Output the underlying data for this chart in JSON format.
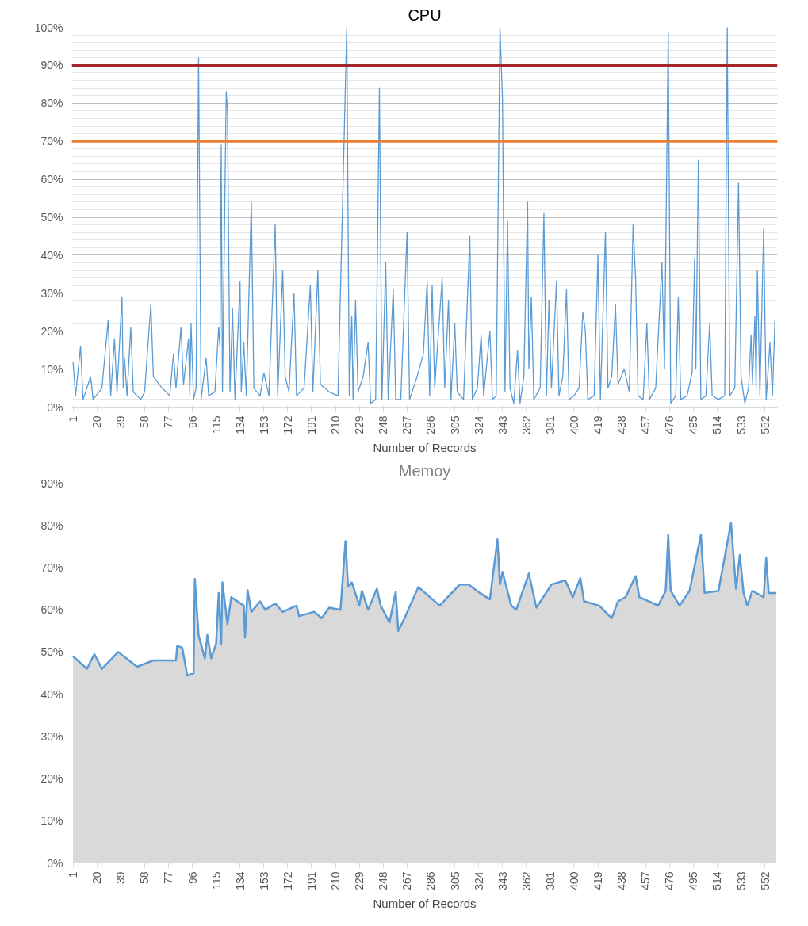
{
  "chart_data": [
    {
      "type": "line",
      "title": "CPU",
      "xlabel": "Number of Records",
      "xlim": [
        0,
        562
      ],
      "ylim": [
        0,
        100
      ],
      "xticks": [
        1,
        20,
        39,
        58,
        77,
        96,
        115,
        134,
        153,
        172,
        191,
        210,
        229,
        248,
        267,
        286,
        305,
        324,
        343,
        362,
        381,
        400,
        419,
        438,
        457,
        476,
        495,
        514,
        533,
        552
      ],
      "yticks": [
        {
          "value": 0,
          "label": "0%"
        },
        {
          "value": 10,
          "label": "10%"
        },
        {
          "value": 20,
          "label": "20%"
        },
        {
          "value": 30,
          "label": "30%"
        },
        {
          "value": 40,
          "label": "40%"
        },
        {
          "value": 50,
          "label": "50%"
        },
        {
          "value": 60,
          "label": "60%"
        },
        {
          "value": 70,
          "label": "70%"
        },
        {
          "value": 80,
          "label": "80%"
        },
        {
          "value": 90,
          "label": "90%"
        },
        {
          "value": 100,
          "label": "100%"
        }
      ],
      "grid": "y",
      "ref_lines": [
        {
          "axis": "y",
          "value": 90,
          "color": "#a3262a"
        },
        {
          "axis": "y",
          "value": 70,
          "color": "#ed7d31"
        }
      ],
      "series": [
        {
          "color": "#5b9bd5",
          "x": [
            1,
            3,
            7,
            9,
            15,
            17,
            24,
            29,
            31,
            34,
            36,
            40,
            41,
            42,
            44,
            47,
            49,
            55,
            58,
            63,
            65,
            72,
            78,
            81,
            83,
            87,
            89,
            93,
            94,
            95,
            97,
            99,
            101,
            103,
            107,
            109,
            114,
            117,
            118,
            119,
            120,
            123,
            124,
            126,
            128,
            130,
            134,
            135,
            137,
            139,
            143,
            145,
            150,
            153,
            157,
            162,
            164,
            168,
            170,
            173,
            177,
            179,
            185,
            190,
            192,
            196,
            198,
            205,
            212,
            219,
            221,
            223,
            224,
            226,
            228,
            232,
            236,
            238,
            242,
            245,
            247,
            250,
            252,
            256,
            258,
            262,
            267,
            269,
            275,
            280,
            283,
            285,
            287,
            289,
            295,
            297,
            300,
            302,
            305,
            307,
            312,
            317,
            319,
            323,
            326,
            328,
            333,
            335,
            338,
            341,
            343,
            345,
            347,
            349,
            352,
            355,
            357,
            360,
            363,
            364,
            366,
            368,
            373,
            376,
            378,
            380,
            382,
            386,
            388,
            391,
            394,
            396,
            400,
            404,
            407,
            409,
            411,
            416,
            419,
            421,
            425,
            427,
            430,
            433,
            435,
            440,
            444,
            447,
            449,
            451,
            455,
            458,
            460,
            465,
            470,
            472,
            475,
            477,
            481,
            483,
            485,
            490,
            494,
            496,
            497,
            499,
            501,
            505,
            508,
            510,
            515,
            520,
            522,
            524,
            528,
            531,
            533,
            536,
            539,
            541,
            542,
            544,
            545,
            546,
            548,
            551,
            553,
            556,
            558,
            560
          ],
          "values": [
            12,
            3,
            16,
            2,
            8,
            2,
            5,
            23,
            3,
            18,
            4,
            29,
            5,
            13,
            3,
            21,
            4,
            2,
            4,
            27,
            8,
            5,
            3,
            14,
            5,
            21,
            6,
            18,
            3,
            22,
            2,
            5,
            92,
            2,
            13,
            3,
            4,
            21,
            16,
            69,
            4,
            83,
            78,
            4,
            26,
            2,
            33,
            4,
            17,
            3,
            54,
            5,
            3,
            9,
            3,
            48,
            3,
            36,
            8,
            4,
            30,
            3,
            5,
            32,
            4,
            36,
            6,
            4,
            3,
            100,
            3,
            24,
            2,
            28,
            4,
            8,
            17,
            1,
            2,
            84,
            2,
            38,
            2,
            31,
            2,
            2,
            46,
            2,
            8,
            14,
            33,
            3,
            32,
            5,
            34,
            5,
            28,
            2,
            22,
            4,
            2,
            45,
            2,
            5,
            19,
            3,
            20,
            2,
            3,
            100,
            81,
            4,
            49,
            5,
            1,
            15,
            1,
            8,
            54,
            10,
            29,
            2,
            5,
            51,
            3,
            28,
            5,
            33,
            3,
            8,
            31,
            2,
            3,
            5,
            25,
            20,
            2,
            3,
            40,
            2,
            46,
            5,
            8,
            27,
            6,
            10,
            4,
            48,
            34,
            3,
            2,
            22,
            2,
            5,
            38,
            10,
            99,
            1,
            3,
            29,
            2,
            3,
            9,
            39,
            10,
            65,
            2,
            3,
            22,
            3,
            2,
            3,
            100,
            3,
            5,
            59,
            8,
            1,
            5,
            19,
            6,
            24,
            5,
            36,
            3,
            47,
            2,
            17,
            3,
            23
          ]
        }
      ]
    },
    {
      "type": "area",
      "title": "Memoy",
      "xlabel": "Number of Records",
      "xlim": [
        0,
        562
      ],
      "ylim": [
        0,
        90
      ],
      "xticks": [
        1,
        20,
        39,
        58,
        77,
        96,
        115,
        134,
        153,
        172,
        191,
        210,
        229,
        248,
        267,
        286,
        305,
        324,
        343,
        362,
        381,
        400,
        419,
        438,
        457,
        476,
        495,
        514,
        533,
        552
      ],
      "yticks": [
        {
          "value": 0,
          "label": "0%"
        },
        {
          "value": 10,
          "label": "10%"
        },
        {
          "value": 20,
          "label": "20%"
        },
        {
          "value": 30,
          "label": "30%"
        },
        {
          "value": 40,
          "label": "40%"
        },
        {
          "value": 50,
          "label": "50%"
        },
        {
          "value": 60,
          "label": "60%"
        },
        {
          "value": 70,
          "label": "70%"
        },
        {
          "value": 80,
          "label": "80%"
        },
        {
          "value": 90,
          "label": "90%"
        }
      ],
      "grid": false,
      "series": [
        {
          "color": "#5b9bd5",
          "x": [
            1,
            12,
            18,
            24,
            37,
            52,
            65,
            83,
            84,
            88,
            92,
            97,
            98,
            101,
            106,
            108,
            111,
            115,
            117,
            119,
            120,
            124,
            127,
            137,
            138,
            140,
            143,
            150,
            154,
            162,
            168,
            179,
            181,
            193,
            199,
            205,
            214,
            218,
            220,
            223,
            229,
            231,
            236,
            243,
            246,
            253,
            258,
            260,
            265,
            276,
            293,
            309,
            316,
            325,
            333,
            339,
            341,
            343,
            350,
            354,
            364,
            370,
            382,
            393,
            399,
            405,
            408,
            420,
            430,
            435,
            441,
            449,
            452,
            467,
            473,
            475,
            477,
            484,
            492,
            501,
            504,
            515,
            525,
            529,
            532,
            535,
            538,
            542,
            551,
            553,
            555,
            561
          ],
          "values": [
            49,
            46,
            49.5,
            46,
            50,
            46.5,
            48,
            48,
            51.5,
            51,
            44.4,
            45,
            67.3,
            54,
            48.5,
            54,
            48.5,
            52,
            64,
            52,
            66.5,
            56.6,
            63,
            61,
            53.4,
            64.7,
            59.5,
            62,
            60,
            61.5,
            59.5,
            61,
            58.5,
            59.5,
            58,
            60.5,
            60,
            76.3,
            65.5,
            66.5,
            61,
            64.5,
            60,
            65,
            61,
            57,
            64.3,
            55,
            58,
            65.4,
            61,
            66,
            66,
            64,
            62.5,
            76.7,
            66,
            69,
            61,
            60,
            68.6,
            60.5,
            66,
            67,
            63,
            67.5,
            62,
            61,
            58,
            62,
            63,
            68,
            63,
            61,
            64.5,
            77.8,
            64.5,
            61,
            64.5,
            77.8,
            64,
            64.5,
            80.6,
            65,
            73,
            64,
            61,
            64.5,
            63,
            72.3,
            64,
            64
          ]
        }
      ]
    }
  ]
}
